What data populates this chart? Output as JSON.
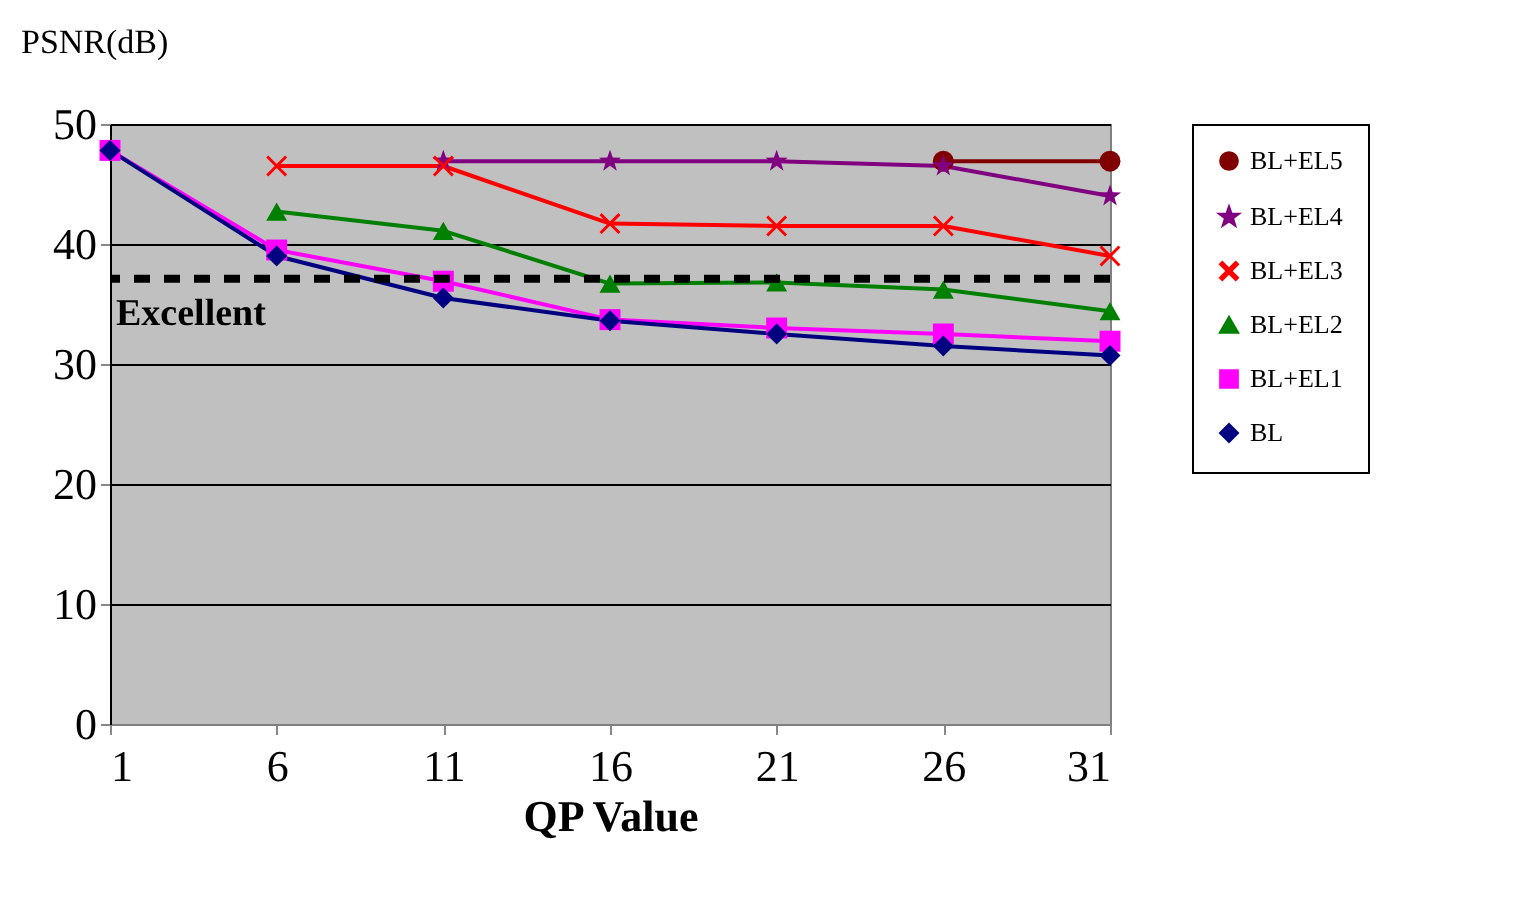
{
  "chart_data": {
    "type": "line",
    "xlabel": "QP Value",
    "ylabel": "PSNR(dB)",
    "x": [
      1,
      6,
      11,
      16,
      21,
      26,
      31
    ],
    "xlim": [
      1,
      31
    ],
    "xticks": [
      1,
      6,
      11,
      16,
      21,
      26,
      31
    ],
    "ylim": [
      0,
      50
    ],
    "yticks": [
      0,
      10,
      20,
      30,
      40,
      50
    ],
    "grid": "y",
    "legend": "right",
    "line_style": "solid",
    "series": [
      {
        "name": "BL+EL5",
        "color": "#800000",
        "marker": "circle",
        "values": [
          null,
          null,
          null,
          null,
          null,
          46.9,
          46.9
        ]
      },
      {
        "name": "BL+EL4",
        "color": "#800080",
        "marker": "star",
        "values": [
          null,
          null,
          46.9,
          46.9,
          46.9,
          46.5,
          44
        ]
      },
      {
        "name": "BL+EL3",
        "color": "#ff0000",
        "marker": "cross",
        "values": [
          null,
          46.5,
          46.5,
          41.7,
          41.5,
          41.5,
          39
        ]
      },
      {
        "name": "BL+EL2",
        "color": "#008000",
        "marker": "triangle",
        "values": [
          null,
          42.7,
          41.1,
          36.7,
          36.8,
          36.2,
          34.4
        ]
      },
      {
        "name": "BL+EL1",
        "color": "#ff00ff",
        "marker": "square",
        "values": [
          47.8,
          39.5,
          36.9,
          33.7,
          33,
          32.5,
          31.9
        ]
      },
      {
        "name": "BL",
        "color": "#000080",
        "marker": "diamond",
        "values": [
          47.8,
          39,
          35.5,
          33.6,
          32.5,
          31.5,
          30.7
        ]
      }
    ],
    "ref_lines": [
      {
        "axis": "y",
        "value": 37.1,
        "label": "Excellent",
        "color": "#000000",
        "line_style": "dashed"
      }
    ]
  }
}
